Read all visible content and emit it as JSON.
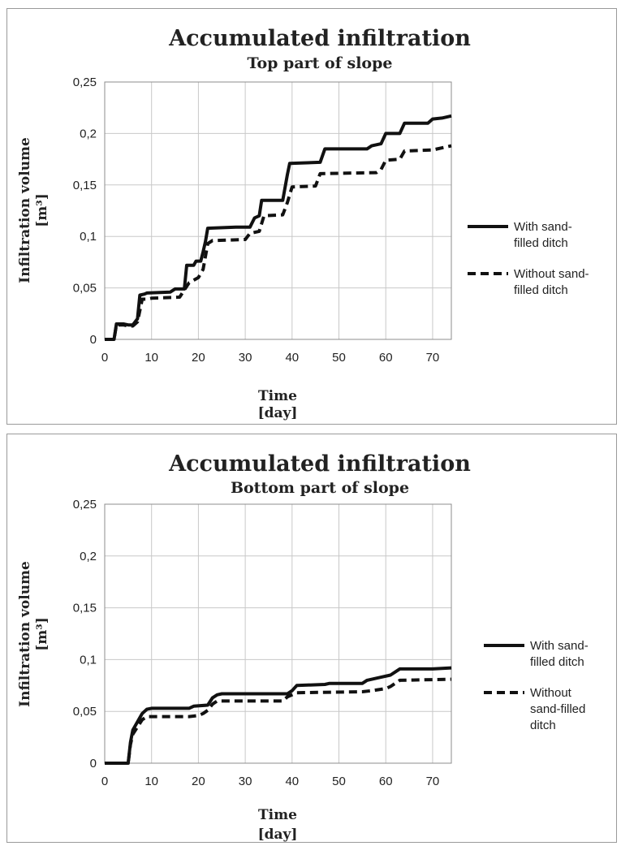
{
  "colors": {
    "line": "#111111",
    "grid": "#c8c8c8",
    "frame": "#8c8c8c"
  },
  "chart_data": [
    {
      "type": "line",
      "title": "Accumulated infiltration",
      "subtitle": "Top part of slope",
      "xlabel": "Time",
      "xunit": "[day]",
      "ylabel": "Infiltration volume",
      "yunit": "[m³]",
      "xlim": [
        0,
        74
      ],
      "ylim": [
        0,
        0.25
      ],
      "x_ticks": [
        0,
        10,
        20,
        30,
        40,
        50,
        60,
        70
      ],
      "x_tick_labels": [
        "0",
        "10",
        "20",
        "30",
        "40",
        "50",
        "60",
        "70"
      ],
      "y_ticks": [
        0,
        0.05,
        0.1,
        0.15,
        0.2,
        0.25
      ],
      "y_tick_labels": [
        "0",
        "0,05",
        "0,1",
        "0,15",
        "0,2",
        "0,25"
      ],
      "grid": true,
      "legend_position": "right",
      "series": [
        {
          "name": "With sand-filled ditch",
          "legend_lines": [
            "With sand-",
            "filled ditch"
          ],
          "style": "solid",
          "points": [
            [
              0,
              0
            ],
            [
              2,
              0
            ],
            [
              2.5,
              0.015
            ],
            [
              4,
              0.015
            ],
            [
              5,
              0.014
            ],
            [
              6,
              0.014
            ],
            [
              7,
              0.02
            ],
            [
              7.5,
              0.043
            ],
            [
              8.5,
              0.044
            ],
            [
              9,
              0.045
            ],
            [
              14,
              0.046
            ],
            [
              15,
              0.049
            ],
            [
              17,
              0.049
            ],
            [
              17.5,
              0.072
            ],
            [
              19,
              0.072
            ],
            [
              19.5,
              0.076
            ],
            [
              20.5,
              0.076
            ],
            [
              21,
              0.085
            ],
            [
              21.5,
              0.095
            ],
            [
              22,
              0.108
            ],
            [
              28,
              0.109
            ],
            [
              31,
              0.109
            ],
            [
              32,
              0.118
            ],
            [
              33,
              0.12
            ],
            [
              33.5,
              0.135
            ],
            [
              38,
              0.135
            ],
            [
              39,
              0.16
            ],
            [
              39.5,
              0.171
            ],
            [
              46,
              0.172
            ],
            [
              47,
              0.185
            ],
            [
              56,
              0.185
            ],
            [
              57,
              0.188
            ],
            [
              59,
              0.19
            ],
            [
              60,
              0.2
            ],
            [
              63,
              0.2
            ],
            [
              64,
              0.21
            ],
            [
              69,
              0.21
            ],
            [
              70,
              0.214
            ],
            [
              72,
              0.215
            ],
            [
              74,
              0.217
            ]
          ]
        },
        {
          "name": "Without sand-filled ditch",
          "legend_lines": [
            "Without sand-",
            "filled ditch"
          ],
          "style": "dashed",
          "points": [
            [
              0,
              0
            ],
            [
              2,
              0
            ],
            [
              2.5,
              0.014
            ],
            [
              4,
              0.014
            ],
            [
              5,
              0.013
            ],
            [
              6,
              0.013
            ],
            [
              7,
              0.017
            ],
            [
              8,
              0.039
            ],
            [
              9,
              0.039
            ],
            [
              10,
              0.04
            ],
            [
              16,
              0.041
            ],
            [
              17,
              0.048
            ],
            [
              18,
              0.055
            ],
            [
              20,
              0.06
            ],
            [
              21,
              0.068
            ],
            [
              22,
              0.093
            ],
            [
              23,
              0.096
            ],
            [
              30,
              0.097
            ],
            [
              31,
              0.103
            ],
            [
              33,
              0.105
            ],
            [
              34,
              0.12
            ],
            [
              38,
              0.121
            ],
            [
              39,
              0.133
            ],
            [
              40,
              0.148
            ],
            [
              45,
              0.149
            ],
            [
              46,
              0.161
            ],
            [
              58,
              0.162
            ],
            [
              59,
              0.165
            ],
            [
              60,
              0.174
            ],
            [
              63,
              0.175
            ],
            [
              64,
              0.183
            ],
            [
              70,
              0.184
            ],
            [
              74,
              0.188
            ]
          ]
        }
      ]
    },
    {
      "type": "line",
      "title": "Accumulated infiltration",
      "subtitle": "Bottom part of slope",
      "xlabel": "Time",
      "xunit": "[day]",
      "ylabel": "Infiltration volume",
      "yunit": "[m³]",
      "xlim": [
        0,
        74
      ],
      "ylim": [
        0,
        0.25
      ],
      "x_ticks": [
        0,
        10,
        20,
        30,
        40,
        50,
        60,
        70
      ],
      "x_tick_labels": [
        "0",
        "10",
        "20",
        "30",
        "40",
        "50",
        "60",
        "70"
      ],
      "y_ticks": [
        0,
        0.05,
        0.1,
        0.15,
        0.2,
        0.25
      ],
      "y_tick_labels": [
        "0",
        "0,05",
        "0,1",
        "0,15",
        "0,2",
        "0,25"
      ],
      "grid": true,
      "legend_position": "right",
      "series": [
        {
          "name": "With sand-filled ditch",
          "legend_lines": [
            "With sand-",
            "filled ditch"
          ],
          "style": "solid",
          "points": [
            [
              0,
              0
            ],
            [
              5,
              0
            ],
            [
              5.5,
              0.02
            ],
            [
              6,
              0.032
            ],
            [
              7,
              0.04
            ],
            [
              8,
              0.048
            ],
            [
              9,
              0.052
            ],
            [
              10,
              0.053
            ],
            [
              18,
              0.053
            ],
            [
              19,
              0.055
            ],
            [
              22,
              0.056
            ],
            [
              23,
              0.063
            ],
            [
              24,
              0.066
            ],
            [
              25,
              0.067
            ],
            [
              39,
              0.067
            ],
            [
              40,
              0.07
            ],
            [
              41,
              0.075
            ],
            [
              47,
              0.076
            ],
            [
              48,
              0.077
            ],
            [
              55,
              0.077
            ],
            [
              56,
              0.08
            ],
            [
              59,
              0.083
            ],
            [
              61,
              0.085
            ],
            [
              62,
              0.088
            ],
            [
              63,
              0.091
            ],
            [
              70,
              0.091
            ],
            [
              74,
              0.092
            ]
          ]
        },
        {
          "name": "Without sand-filled ditch",
          "legend_lines": [
            "Without",
            "sand-filled",
            "ditch"
          ],
          "style": "dashed",
          "points": [
            [
              0,
              0
            ],
            [
              5,
              0
            ],
            [
              5.5,
              0.018
            ],
            [
              6,
              0.028
            ],
            [
              7,
              0.035
            ],
            [
              8,
              0.042
            ],
            [
              9,
              0.045
            ],
            [
              18,
              0.045
            ],
            [
              20,
              0.046
            ],
            [
              21,
              0.048
            ],
            [
              22,
              0.051
            ],
            [
              23,
              0.057
            ],
            [
              24,
              0.06
            ],
            [
              38,
              0.06
            ],
            [
              39,
              0.064
            ],
            [
              41,
              0.068
            ],
            [
              55,
              0.069
            ],
            [
              57,
              0.07
            ],
            [
              60,
              0.072
            ],
            [
              61,
              0.074
            ],
            [
              62,
              0.077
            ],
            [
              63,
              0.08
            ],
            [
              74,
              0.081
            ]
          ]
        }
      ]
    }
  ]
}
